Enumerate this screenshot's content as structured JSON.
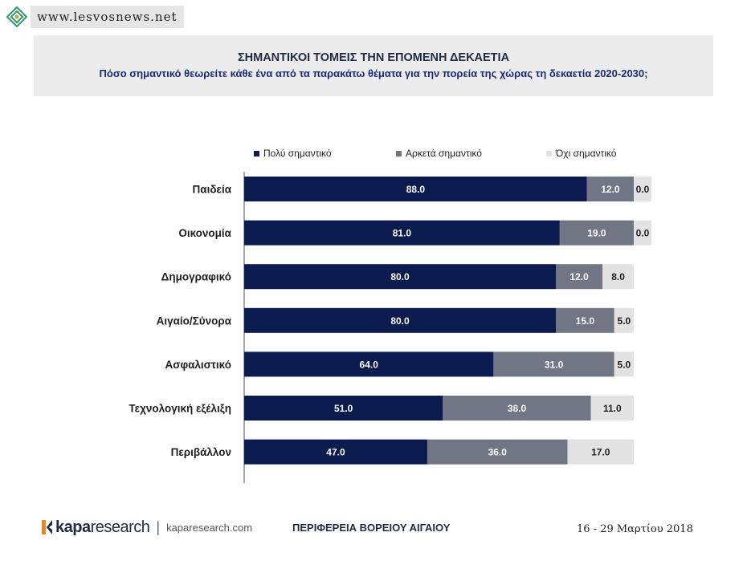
{
  "watermark": {
    "text": "www.lesvosnews.net",
    "icon": "leaf-logo-icon"
  },
  "header": {
    "title": "ΣΗΜΑΝΤΙΚΟΙ ΤΟΜΕΙΣ ΤΗΝ ΕΠΟΜΕΝΗ ΔΕΚΑΕΤΙΑ",
    "subtitle": "Πόσο σημαντικό θεωρείτε κάθε ένα από τα παρακάτω θέματα για την πορεία της χώρας τη δεκαετία 2020-2030;"
  },
  "chart_data": {
    "type": "bar",
    "orientation": "horizontal",
    "stacked": true,
    "categories": [
      "Παιδεία",
      "Οικονομία",
      "Δημογραφικό",
      "Αιγαίο/Σύνορα",
      "Ασφαλιστικό",
      "Τεχνολογική εξέλιξη",
      "Περιβάλλον"
    ],
    "series": [
      {
        "name": "Πολύ σημαντικό",
        "color": "#0b1a4f",
        "values": [
          88.0,
          81.0,
          80.0,
          80.0,
          64.0,
          51.0,
          47.0
        ]
      },
      {
        "name": "Αρκετά σημαντικό",
        "color": "#707684",
        "values": [
          12.0,
          19.0,
          12.0,
          15.0,
          31.0,
          38.0,
          36.0
        ]
      },
      {
        "name": "Όχι σημαντικό",
        "color": "#e2e2e2",
        "values": [
          0.0,
          0.0,
          8.0,
          5.0,
          5.0,
          11.0,
          17.0
        ]
      }
    ],
    "xlim": [
      0,
      100
    ],
    "legend_position": "top",
    "grid": false,
    "data_labels": true
  },
  "footer": {
    "brand_bold": "kapa",
    "brand_light": "research",
    "separator": "|",
    "site": "kaparesearch.com",
    "region": "ΠΕΡΙΦΕΡΕΙΑ ΒΟΡΕΙΟΥ ΑΙΓΑΙΟΥ",
    "date": "16 - 29 Μαρτίου 2018"
  }
}
